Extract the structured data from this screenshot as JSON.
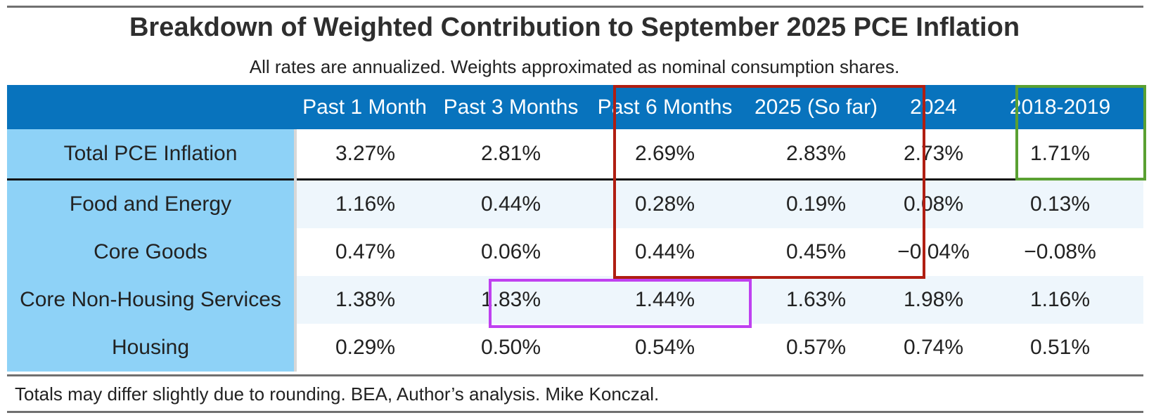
{
  "title": "Breakdown of Weighted Contribution to September 2025 PCE Inflation",
  "subtitle": "All rates are annualized. Weights approximated as nominal consumption shares.",
  "footnote": "Totals may differ slightly due to rounding. BEA, Author’s analysis. Mike Konczal.",
  "colors": {
    "header_bg": "#0873bd",
    "row_label_bg": "#8ed2f7",
    "band_bg": "#eef6fc",
    "highlight_red": "#b01e12",
    "highlight_green": "#5aa032",
    "highlight_purple": "#bf40f0"
  },
  "chart_data": {
    "type": "table",
    "title": "Breakdown of Weighted Contribution to September 2025 PCE Inflation",
    "subtitle": "All rates are annualized. Weights approximated as nominal consumption shares.",
    "columns": [
      "",
      "Past 1 Month",
      "Past 3 Months",
      "Past 6 Months",
      "2025 (So far)",
      "2024",
      "2018-2019"
    ],
    "rows": [
      {
        "label": "Total PCE Inflation",
        "values": [
          "3.27%",
          "2.81%",
          "2.69%",
          "2.83%",
          "2.73%",
          "1.71%"
        ]
      },
      {
        "label": "Food and Energy",
        "values": [
          "1.16%",
          "0.44%",
          "0.28%",
          "0.19%",
          "0.08%",
          "0.13%"
        ]
      },
      {
        "label": "Core Goods",
        "values": [
          "0.47%",
          "0.06%",
          "0.44%",
          "0.45%",
          "−0.04%",
          "−0.08%"
        ]
      },
      {
        "label": "Core Non-Housing Services",
        "values": [
          "1.38%",
          "1.83%",
          "1.44%",
          "1.63%",
          "1.98%",
          "1.16%"
        ]
      },
      {
        "label": "Housing",
        "values": [
          "0.29%",
          "0.50%",
          "0.54%",
          "0.57%",
          "0.74%",
          "0.51%"
        ]
      }
    ],
    "highlights": [
      {
        "color": "red",
        "columns": [
          "Past 6 Months",
          "2025 (So far)"
        ],
        "rows": [
          "header",
          "Total PCE Inflation",
          "Food and Energy",
          "Core Goods"
        ]
      },
      {
        "color": "green",
        "columns": [
          "2018-2019"
        ],
        "rows": [
          "header",
          "Total PCE Inflation"
        ]
      },
      {
        "color": "purple",
        "columns": [
          "Past 3 Months",
          "Past 6 Months"
        ],
        "rows": [
          "Core Non-Housing Services"
        ]
      }
    ]
  }
}
